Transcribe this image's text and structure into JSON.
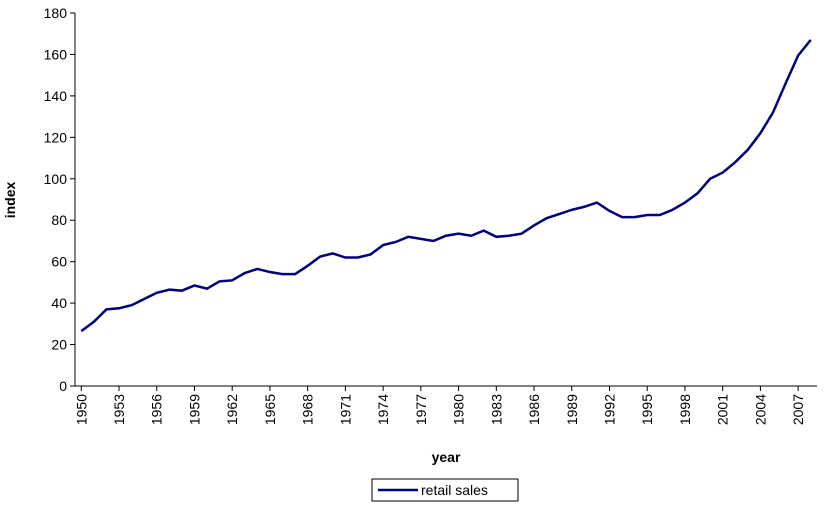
{
  "chart_data": {
    "type": "line",
    "x_label": "year",
    "y_label": "index",
    "x": [
      1950,
      1951,
      1952,
      1953,
      1954,
      1955,
      1956,
      1957,
      1958,
      1959,
      1960,
      1961,
      1962,
      1963,
      1964,
      1965,
      1966,
      1967,
      1968,
      1969,
      1970,
      1971,
      1972,
      1973,
      1974,
      1975,
      1976,
      1977,
      1978,
      1979,
      1980,
      1981,
      1982,
      1983,
      1984,
      1985,
      1986,
      1987,
      1988,
      1989,
      1990,
      1991,
      1992,
      1993,
      1994,
      1995,
      1996,
      1997,
      1998,
      1999,
      2000,
      2001,
      2002,
      2003,
      2004,
      2005,
      2006,
      2007,
      2008
    ],
    "series": [
      {
        "name": "retail sales",
        "color": "#000080",
        "values": [
          26.5,
          31,
          37,
          37.5,
          39,
          42,
          45,
          46.5,
          46,
          48.5,
          47,
          50.5,
          51,
          54.5,
          56.5,
          55,
          54,
          54,
          58,
          62.5,
          64,
          62,
          62,
          63.5,
          68,
          69.5,
          72,
          71,
          70,
          72.5,
          73.5,
          72.5,
          75,
          72,
          72.5,
          73.5,
          77.5,
          81,
          83,
          85,
          86.5,
          88.5,
          84.5,
          81.5,
          81.5,
          82.5,
          82.5,
          85,
          88.5,
          93,
          100,
          103,
          108,
          114,
          122,
          132,
          146,
          159.5,
          167
        ]
      }
    ],
    "xlim": [
      1949.5,
      2008.5
    ],
    "xticks": [
      1950,
      1953,
      1956,
      1959,
      1962,
      1965,
      1968,
      1971,
      1974,
      1977,
      1980,
      1983,
      1986,
      1989,
      1992,
      1995,
      1998,
      2001,
      2004,
      2007
    ],
    "ylim": [
      0,
      180
    ],
    "yticks": [
      0,
      20,
      40,
      60,
      80,
      100,
      120,
      140,
      160,
      180
    ],
    "legend": "bottom"
  }
}
